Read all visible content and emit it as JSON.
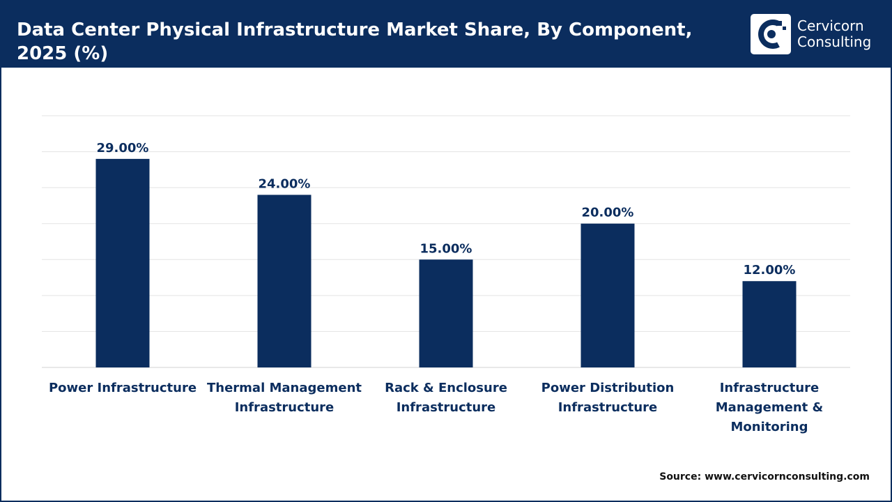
{
  "header": {
    "title": "Data Center Physical Infrastructure Market Share, By Component, 2025 (%)",
    "logo_line1": "Cervicorn",
    "logo_line2": "Consulting"
  },
  "colors": {
    "bar": "#0b2d5e",
    "header_bg": "#0b2d5e",
    "grid": "#e3e3e3"
  },
  "chart_data": {
    "type": "bar",
    "title": "Data Center Physical Infrastructure Market Share, By Component, 2025 (%)",
    "categories": [
      "Power Infrastructure",
      "Thermal Management Infrastructure",
      "Rack & Enclosure Infrastructure",
      "Power Distribution Infrastructure",
      "Infrastructure Management & Monitoring"
    ],
    "values": [
      29,
      24,
      15,
      20,
      12
    ],
    "data_labels": [
      "29.00%",
      "24.00%",
      "15.00%",
      "20.00%",
      "12.00%"
    ],
    "xlabel": "",
    "ylabel": "",
    "ylim": [
      0,
      35
    ],
    "grid": true,
    "legend": "none"
  },
  "footer": {
    "source": "Source: www.cervicornconsulting.com"
  }
}
